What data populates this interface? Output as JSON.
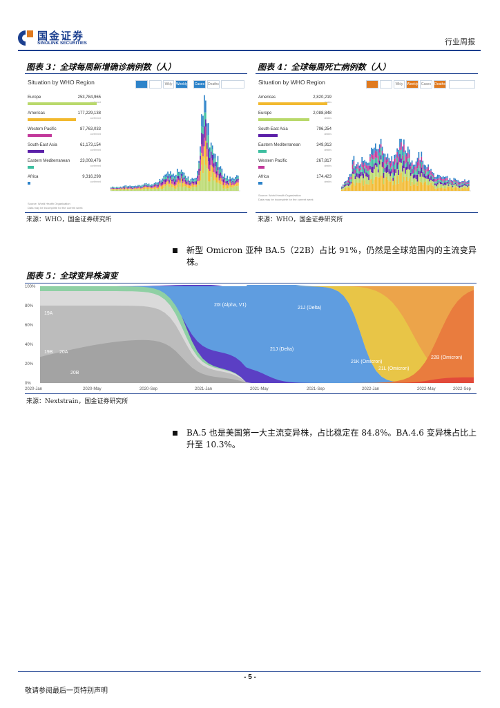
{
  "header": {
    "logo_cn": "国金证券",
    "logo_en": "SINOLINK SECURITIES",
    "doc_type": "行业周报"
  },
  "colors": {
    "brand": "#1b3f8f"
  },
  "figure3": {
    "title": "图表 3：全球每周新增确诊病例数（人）",
    "panel_title": "Situation by WHO Region",
    "source": "来源：WHO，国金证券研究所",
    "controls": [
      "",
      "",
      "Wkly",
      "Weekly",
      "Cases",
      "Deaths"
    ],
    "regions": [
      {
        "name": "Europe",
        "value": "253,784,965",
        "sub": "confirmed",
        "color": "#b9d96b"
      },
      {
        "name": "Americas",
        "value": "177,229,138",
        "sub": "confirmed",
        "color": "#f2b92e"
      },
      {
        "name": "Western Pacific",
        "value": "87,763,033",
        "sub": "confirmed",
        "color": "#c2389a"
      },
      {
        "name": "South-East Asia",
        "value": "61,173,154",
        "sub": "confirmed",
        "color": "#5b1fa8"
      },
      {
        "name": "Eastern Mediterranean",
        "value": "23,008,476",
        "sub": "confirmed",
        "color": "#3dbfa0"
      },
      {
        "name": "Africa",
        "value": "9,316,298",
        "sub": "confirmed",
        "color": "#2d83c9"
      }
    ],
    "note": "Source: World Health Organization",
    "note2": "Data may be incomplete for the current week"
  },
  "figure4": {
    "title": "图表 4：全球每周死亡病例数（人）",
    "panel_title": "Situation by WHO Region",
    "source": "来源：WHO，国金证券研究所",
    "controls": [
      "",
      "",
      "Wkly",
      "Weekly",
      "Cases",
      "Deaths"
    ],
    "regions": [
      {
        "name": "Americas",
        "value": "2,820,219",
        "sub": "deaths",
        "color": "#f2b92e"
      },
      {
        "name": "Europe",
        "value": "2,088,848",
        "sub": "deaths",
        "color": "#b9d96b"
      },
      {
        "name": "South-East Asia",
        "value": "796,254",
        "sub": "deaths",
        "color": "#5b1fa8"
      },
      {
        "name": "Eastern Mediterranean",
        "value": "349,913",
        "sub": "deaths",
        "color": "#3dbfa0"
      },
      {
        "name": "Western Pacific",
        "value": "267,817",
        "sub": "deaths",
        "color": "#c2389a"
      },
      {
        "name": "Africa",
        "value": "174,423",
        "sub": "deaths",
        "color": "#2d83c9"
      }
    ],
    "note": "Source: World Health Organization",
    "note2": "Data may be incomplete for the current week"
  },
  "bullets": [
    "新型 Omicron 亚种 BA.5（22B）占比 91%，仍然是全球范围内的主流变异株。",
    "BA.5 也是美国第一大主流变异株，占比稳定在 84.8%。BA.4.6 变异株占比上升至 10.3%。"
  ],
  "figure5": {
    "title": "图表 5：全球变异株演变",
    "source": "来源：Nextstrain，国金证券研究所",
    "y_ticks": [
      "100%",
      "80%",
      "60%",
      "40%",
      "20%",
      "0%"
    ],
    "x_ticks": [
      "2020-Jan",
      "2020-May",
      "2020-Sep",
      "2021-Jan",
      "2021-May",
      "2021-Sep",
      "2022-Jan",
      "2022-May",
      "2022-Sep"
    ],
    "clades": [
      "19A",
      "19B",
      "20A",
      "20B",
      "20I (Alpha, V1)",
      "21J (Delta)",
      "21J (Delta)",
      "21K (Omicron)",
      "21L (Omicron)",
      "22B (Omicron)"
    ]
  },
  "footer": {
    "page": "- 5 -",
    "disclaimer": "敬请参阅最后一页特别声明"
  }
}
